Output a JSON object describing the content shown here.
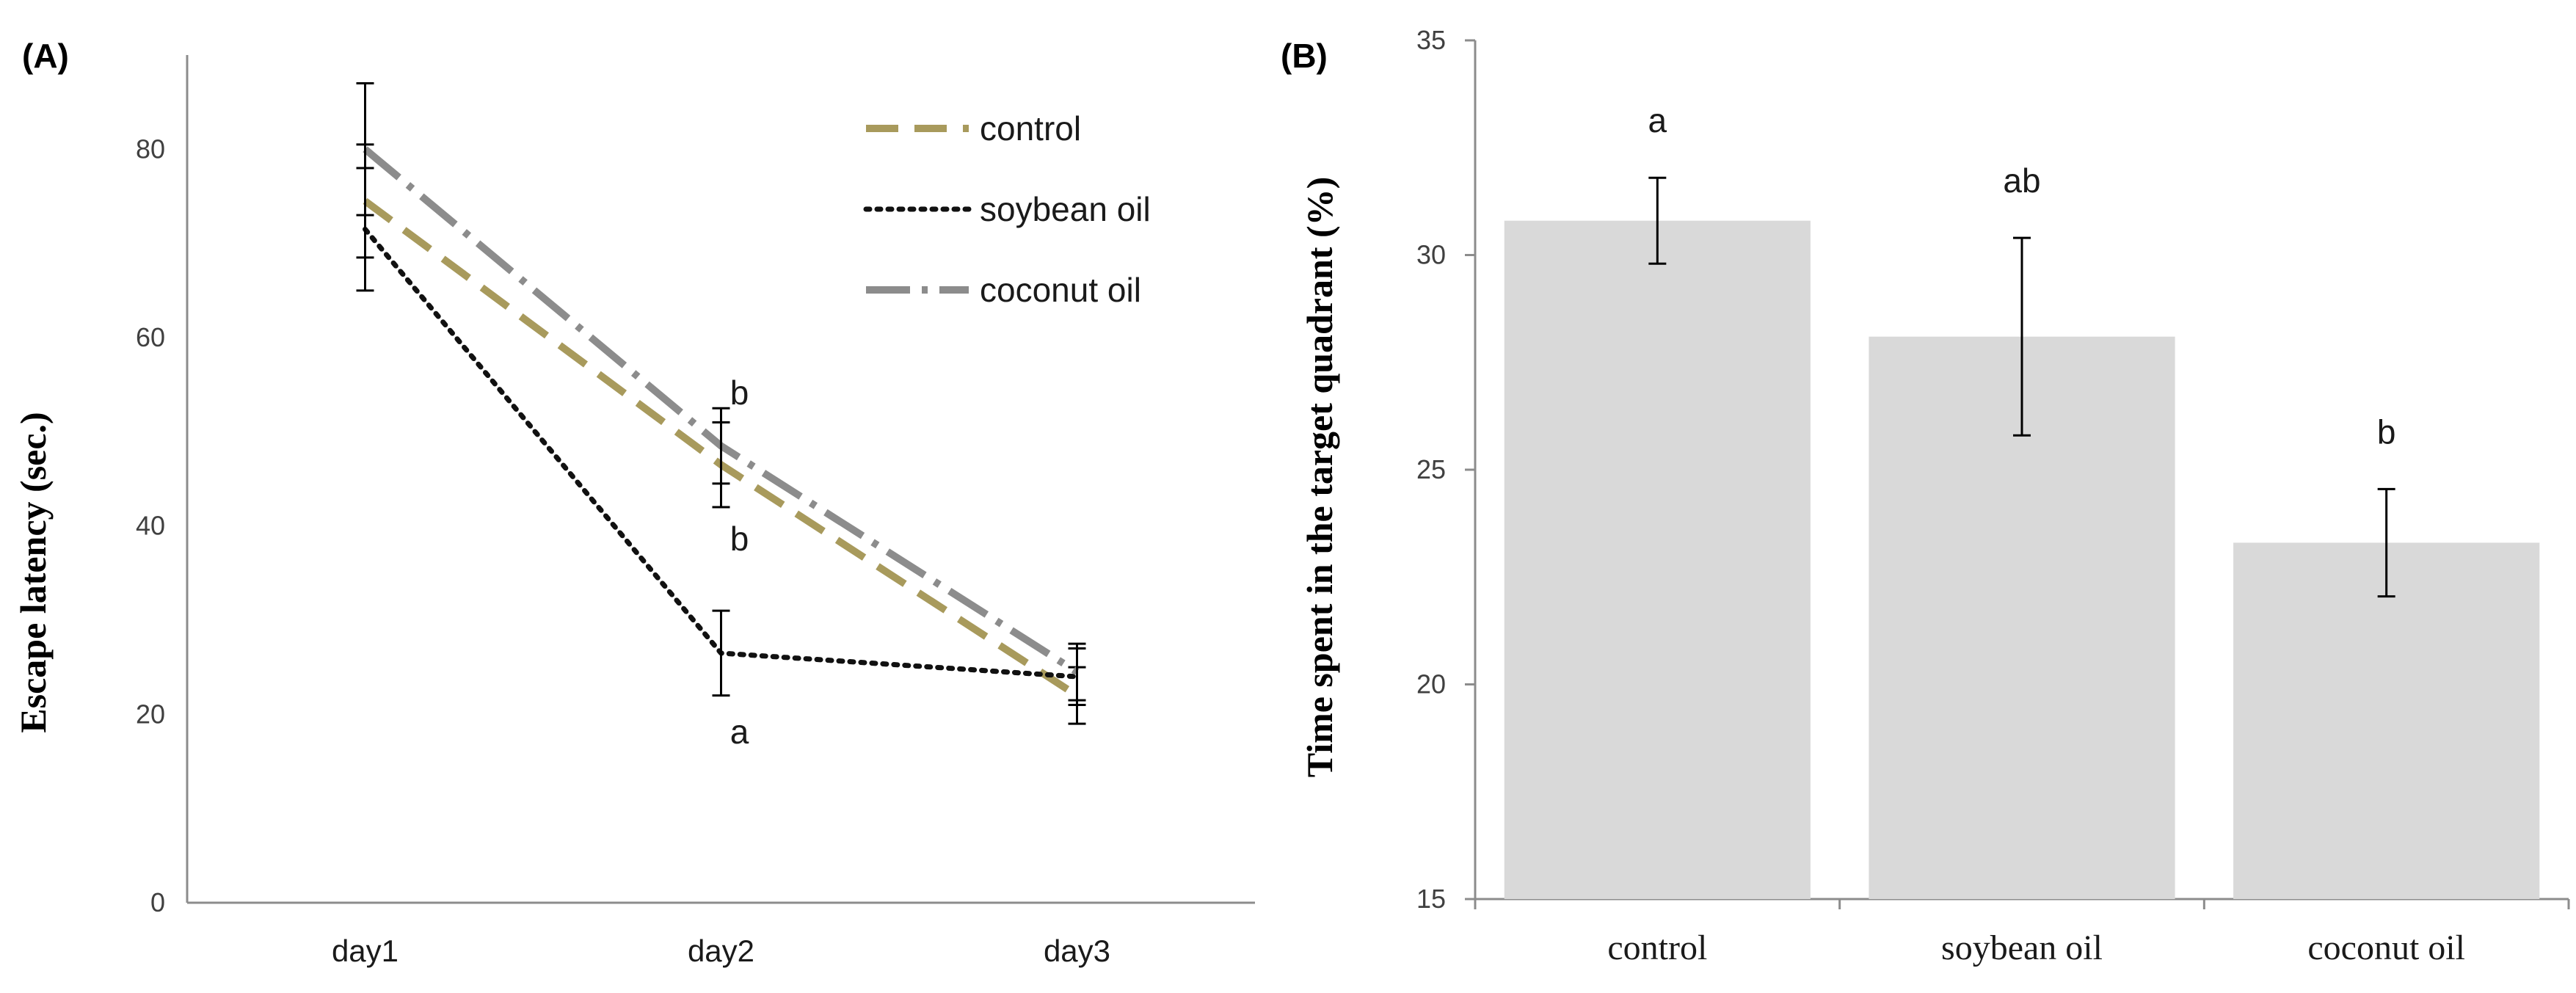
{
  "chart_data": [
    {
      "panel_label": "(A)",
      "type": "line",
      "ylabel": "Escape latency (sec.)",
      "xlabel": "",
      "categories": [
        "day1",
        "day2",
        "day3"
      ],
      "ylim": [
        0,
        90
      ],
      "yticks": [
        0,
        20,
        40,
        60,
        80
      ],
      "grid": false,
      "legend_position": "top-right",
      "series": [
        {
          "name": "control",
          "color": "#a89a5c",
          "dash": "long-dash",
          "values": [
            74.5,
            46.5,
            22
          ],
          "errors": [
            6,
            4.5,
            3
          ]
        },
        {
          "name": "soybean oil",
          "color": "#111111",
          "dash": "dot",
          "values": [
            71.5,
            26.5,
            24
          ],
          "errors": [
            6.5,
            4.5,
            3
          ]
        },
        {
          "name": "coconut oil",
          "color": "#8c8c8c",
          "dash": "dash-dot",
          "values": [
            80,
            48.5,
            24.5
          ],
          "errors": [
            7,
            4,
            3
          ]
        }
      ],
      "annotations": [
        {
          "text": "b",
          "category": "day2",
          "y": 54
        },
        {
          "text": "b",
          "category": "day2",
          "y": 38.5
        },
        {
          "text": "a",
          "category": "day2",
          "y": 18
        }
      ]
    },
    {
      "panel_label": "(B)",
      "type": "bar",
      "ylabel": "Time spent in the target quadrant  (%)",
      "xlabel": "",
      "categories": [
        "control",
        "soybean oil",
        "coconut oil"
      ],
      "values": [
        30.8,
        28.1,
        23.3
      ],
      "errors": [
        1.0,
        2.3,
        1.25
      ],
      "ylim": [
        15,
        35
      ],
      "yticks": [
        15,
        20,
        25,
        30,
        35
      ],
      "grid": false,
      "bar_color": "#d9d9d9",
      "significance_labels": [
        "a",
        "ab",
        "b"
      ]
    }
  ]
}
